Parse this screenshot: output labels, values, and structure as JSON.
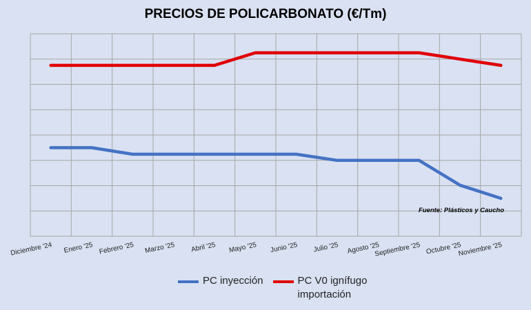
{
  "chart_data": {
    "type": "line",
    "title": "PRECIOS DE POLICARBONATO (€/Tm)",
    "source_note": "Fuente: Plásticos y Caucho",
    "categories": [
      "Diciembre '24",
      "Enero '25",
      "Febrero '25",
      "Marzo '25",
      "Abril '25",
      "Mayo '25",
      "Junio '25",
      "Julio '25",
      "Agosto '25",
      "Septiembre '25",
      "Octubre '25",
      "Noviembre '25"
    ],
    "ylim": [
      0,
      8
    ],
    "grid": true,
    "legend_position": "bottom",
    "series": [
      {
        "name": "PC inyección",
        "color": "#4472c4",
        "values": [
          3.5,
          3.5,
          3.24,
          3.24,
          3.24,
          3.24,
          3.24,
          3.0,
          3.0,
          3.0,
          2.02,
          1.5
        ]
      },
      {
        "name": "PC V0 ignífugo importación",
        "color": "#e00000",
        "values": [
          6.75,
          6.75,
          6.75,
          6.75,
          6.75,
          7.25,
          7.25,
          7.25,
          7.25,
          7.25,
          7.0,
          6.75
        ]
      }
    ]
  }
}
